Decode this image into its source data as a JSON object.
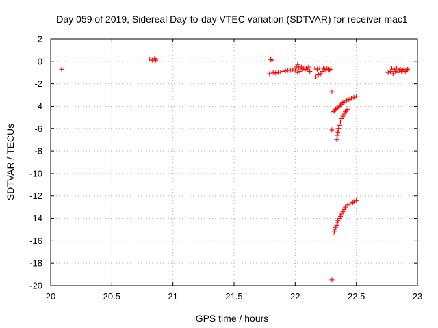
{
  "chart_data": {
    "type": "scatter",
    "title": "Day 059 of 2019, Sidereal Day-to-day VTEC variation (SDTVAR) for receiver mac1",
    "xlabel": "GPS time / hours",
    "ylabel": "SDTVAR / TECUs",
    "xlim": [
      20,
      23
    ],
    "ylim": [
      -20,
      2
    ],
    "xticks": [
      20,
      20.5,
      21,
      21.5,
      22,
      22.5,
      23
    ],
    "xtick_labels": [
      "20",
      "20.5",
      "21",
      "21.5",
      "22",
      "22.5",
      "23"
    ],
    "yticks": [
      2,
      0,
      -2,
      -4,
      -6,
      -8,
      -10,
      -12,
      -14,
      -16,
      -18,
      -20
    ],
    "ytick_labels": [
      "2",
      "0",
      "-2",
      "-4",
      "-6",
      "-8",
      "-10",
      "-12",
      "-14",
      "-16",
      "-18",
      "-20"
    ],
    "grid": true,
    "marker": "plus",
    "color": "#ff0000",
    "series": [
      {
        "points": [
          [
            20.09,
            -0.7
          ],
          [
            20.81,
            0.2
          ],
          [
            20.83,
            0.1
          ],
          [
            20.85,
            0.25
          ],
          [
            20.86,
            0.1
          ],
          [
            20.87,
            0.2
          ],
          [
            21.8,
            0.15
          ],
          [
            21.81,
            0.1
          ],
          [
            21.79,
            -1.1
          ],
          [
            21.82,
            -1.0
          ],
          [
            21.84,
            -1.05
          ],
          [
            21.86,
            -1.0
          ],
          [
            21.88,
            -0.95
          ],
          [
            21.9,
            -0.9
          ],
          [
            21.92,
            -0.85
          ],
          [
            21.94,
            -0.8
          ],
          [
            21.96,
            -0.8
          ],
          [
            21.98,
            -0.75
          ],
          [
            22.0,
            -0.8
          ],
          [
            22.01,
            -0.5
          ],
          [
            22.02,
            -0.3
          ],
          [
            22.02,
            -1.0
          ],
          [
            22.03,
            -0.6
          ],
          [
            22.04,
            -0.9
          ],
          [
            22.05,
            -0.5
          ],
          [
            22.06,
            -0.7
          ],
          [
            22.07,
            -0.6
          ],
          [
            22.08,
            -0.8
          ],
          [
            22.09,
            -0.6
          ],
          [
            22.1,
            -0.7
          ],
          [
            22.11,
            -0.5
          ],
          [
            22.12,
            -0.9
          ],
          [
            22.16,
            -0.6
          ],
          [
            22.17,
            -1.4
          ],
          [
            22.18,
            -0.7
          ],
          [
            22.19,
            -1.2
          ],
          [
            22.2,
            -0.6
          ],
          [
            22.21,
            -1.1
          ],
          [
            22.22,
            -0.9
          ],
          [
            22.23,
            -0.6
          ],
          [
            22.24,
            -0.7
          ],
          [
            22.25,
            -0.8
          ],
          [
            22.26,
            -0.6
          ],
          [
            22.27,
            -0.7
          ],
          [
            22.28,
            -0.8
          ],
          [
            22.29,
            -0.7
          ],
          [
            22.3,
            -2.7
          ],
          [
            22.3,
            -6.1
          ],
          [
            22.31,
            -4.5
          ],
          [
            22.32,
            -4.4
          ],
          [
            22.33,
            -4.3
          ],
          [
            22.34,
            -4.2
          ],
          [
            22.35,
            -4.1
          ],
          [
            22.36,
            -4.0
          ],
          [
            22.37,
            -3.9
          ],
          [
            22.38,
            -3.8
          ],
          [
            22.39,
            -3.7
          ],
          [
            22.4,
            -3.6
          ],
          [
            22.42,
            -3.5
          ],
          [
            22.44,
            -3.4
          ],
          [
            22.46,
            -3.3
          ],
          [
            22.48,
            -3.2
          ],
          [
            22.5,
            -3.1
          ],
          [
            22.34,
            -7.0
          ],
          [
            22.345,
            -6.6
          ],
          [
            22.35,
            -6.3
          ],
          [
            22.355,
            -6.0
          ],
          [
            22.36,
            -5.7
          ],
          [
            22.37,
            -5.4
          ],
          [
            22.38,
            -5.1
          ],
          [
            22.39,
            -4.9
          ],
          [
            22.4,
            -4.7
          ],
          [
            22.41,
            -4.5
          ],
          [
            22.42,
            -4.4
          ],
          [
            22.43,
            -4.3
          ],
          [
            22.31,
            -15.4
          ],
          [
            22.32,
            -15.2
          ],
          [
            22.325,
            -15.0
          ],
          [
            22.33,
            -14.8
          ],
          [
            22.34,
            -14.6
          ],
          [
            22.345,
            -14.4
          ],
          [
            22.35,
            -14.2
          ],
          [
            22.36,
            -14.0
          ],
          [
            22.37,
            -13.8
          ],
          [
            22.38,
            -13.6
          ],
          [
            22.39,
            -13.4
          ],
          [
            22.4,
            -13.2
          ],
          [
            22.41,
            -13.0
          ],
          [
            22.43,
            -12.8
          ],
          [
            22.45,
            -12.7
          ],
          [
            22.47,
            -12.6
          ],
          [
            22.48,
            -12.5
          ],
          [
            22.5,
            -12.4
          ],
          [
            22.3,
            -19.5
          ],
          [
            22.76,
            -1.0
          ],
          [
            22.78,
            -0.9
          ],
          [
            22.79,
            -0.6
          ],
          [
            22.8,
            -1.1
          ],
          [
            22.81,
            -0.7
          ],
          [
            22.82,
            -0.9
          ],
          [
            22.83,
            -0.6
          ],
          [
            22.84,
            -1.0
          ],
          [
            22.85,
            -0.8
          ],
          [
            22.86,
            -0.7
          ],
          [
            22.87,
            -0.9
          ],
          [
            22.88,
            -0.8
          ],
          [
            22.89,
            -0.7
          ],
          [
            22.9,
            -0.9
          ],
          [
            22.91,
            -0.8
          ],
          [
            22.92,
            -0.7
          ]
        ]
      }
    ]
  }
}
